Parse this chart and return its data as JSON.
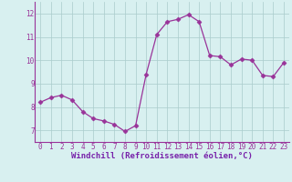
{
  "x": [
    0,
    1,
    2,
    3,
    4,
    5,
    6,
    7,
    8,
    9,
    10,
    11,
    12,
    13,
    14,
    15,
    16,
    17,
    18,
    19,
    20,
    21,
    22,
    23
  ],
  "y": [
    8.2,
    8.4,
    8.5,
    8.3,
    7.8,
    7.5,
    7.4,
    7.25,
    6.95,
    7.2,
    9.4,
    11.1,
    11.65,
    11.75,
    11.95,
    11.65,
    10.2,
    10.15,
    9.8,
    10.05,
    10.0,
    9.35,
    9.3,
    9.9
  ],
  "line_color": "#993399",
  "marker": "D",
  "markersize": 2.5,
  "linewidth": 0.9,
  "bg_color": "#d8f0f0",
  "grid_color": "#aacccc",
  "xlabel": "Windchill (Refroidissement éolien,°C)",
  "xlabel_color": "#7722aa",
  "xlabel_fontsize": 6.5,
  "tick_color": "#993399",
  "tick_fontsize": 5.5,
  "ylim": [
    6.5,
    12.5
  ],
  "yticks": [
    7,
    8,
    9,
    10,
    11,
    12
  ],
  "xticks": [
    0,
    1,
    2,
    3,
    4,
    5,
    6,
    7,
    8,
    9,
    10,
    11,
    12,
    13,
    14,
    15,
    16,
    17,
    18,
    19,
    20,
    21,
    22,
    23
  ],
  "spine_color": "#993399",
  "left_spine_visible": true,
  "bottom_spine_visible": true
}
